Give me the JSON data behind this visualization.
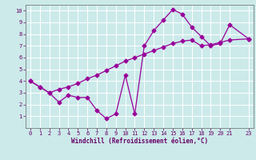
{
  "xlabel": "Windchill (Refroidissement éolien,°C)",
  "line1_x": [
    0,
    1,
    2,
    3,
    4,
    5,
    6,
    7,
    8,
    9,
    10,
    11,
    12,
    13,
    14,
    15,
    16,
    17,
    18,
    19,
    20,
    21,
    23
  ],
  "line1_y": [
    4.0,
    3.5,
    3.0,
    2.2,
    2.8,
    2.6,
    2.6,
    1.5,
    0.8,
    1.2,
    4.5,
    1.2,
    7.0,
    8.3,
    9.2,
    10.1,
    9.7,
    8.6,
    7.8,
    7.0,
    7.2,
    8.8,
    7.6
  ],
  "line2_x": [
    0,
    1,
    2,
    3,
    4,
    5,
    6,
    7,
    8,
    9,
    10,
    11,
    12,
    13,
    14,
    15,
    16,
    17,
    18,
    19,
    20,
    21,
    23
  ],
  "line2_y": [
    4.0,
    3.5,
    3.0,
    3.3,
    3.5,
    3.8,
    4.2,
    4.5,
    4.9,
    5.3,
    5.7,
    6.0,
    6.3,
    6.6,
    6.9,
    7.2,
    7.4,
    7.5,
    7.0,
    7.1,
    7.3,
    7.5,
    7.6
  ],
  "line_color": "#990099",
  "bg_color": "#cceaea",
  "grid_color": "#ffffff",
  "xlim": [
    -0.5,
    23.5
  ],
  "ylim": [
    0,
    10.5
  ],
  "xticks": [
    0,
    1,
    2,
    3,
    4,
    5,
    6,
    7,
    8,
    9,
    10,
    11,
    12,
    13,
    14,
    15,
    16,
    17,
    18,
    19,
    20,
    21,
    23
  ],
  "yticks": [
    1,
    2,
    3,
    4,
    5,
    6,
    7,
    8,
    9,
    10
  ],
  "tick_label_color": "#660066",
  "axis_label_color": "#660066",
  "marker": "D",
  "markersize": 2.5,
  "linewidth": 0.9
}
